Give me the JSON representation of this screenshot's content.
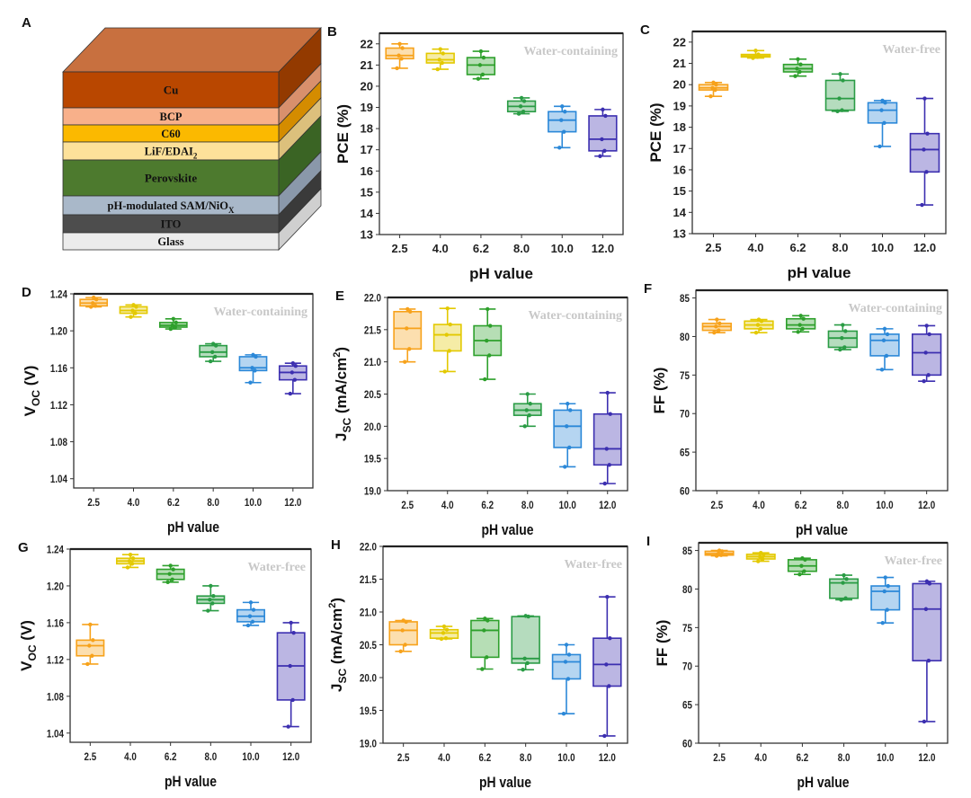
{
  "panel_a": {
    "label": "A",
    "layers": [
      {
        "text": "Cu",
        "sub": "",
        "color": "#b94700",
        "side": "#933a00"
      },
      {
        "text": "BCP",
        "sub": "",
        "color": "#f8b08a",
        "side": "#d8906c"
      },
      {
        "text": "C60",
        "sub": "",
        "color": "#fbb900",
        "side": "#d48c00"
      },
      {
        "text": "LiF/EDAI",
        "sub": "2",
        "color": "#fde19a",
        "side": "#dcc07c"
      },
      {
        "text": "Perovskite",
        "sub": "",
        "color": "#4d7a2e",
        "side": "#3a6424"
      },
      {
        "text": "pH-modulated SAM/NiO",
        "sub": "X",
        "color": "#a9b8c9",
        "side": "#8a98aa"
      },
      {
        "text": "ITO",
        "sub": "",
        "color": "#4d4d4d",
        "side": "#3a3a3a"
      },
      {
        "text": "Glass",
        "sub": "",
        "color": "#ececec",
        "side": "#cfcfcf"
      }
    ],
    "top_color": "#c8703f"
  },
  "box_colors": [
    "#f7a21b",
    "#e3c900",
    "#2ea02c",
    "#2a9c45",
    "#2b88d8",
    "#3c2fb0"
  ],
  "chart_data": [
    {
      "panel": "B",
      "type": "box",
      "condition": "Water-containing",
      "xlabel": "pH value",
      "ylabel": [
        {
          "t": "PCE (%)"
        }
      ],
      "ylim": [
        13,
        22.5
      ],
      "yticks": [
        13,
        14,
        15,
        16,
        17,
        18,
        19,
        20,
        21,
        22
      ],
      "ytick_decimals": 0,
      "categories": [
        "2.5",
        "4.0",
        "6.2",
        "8.0",
        "10.0",
        "12.0"
      ],
      "boxes": [
        [
          20.85,
          21.3,
          21.45,
          21.8,
          22.0
        ],
        [
          20.8,
          21.1,
          21.25,
          21.55,
          21.75
        ],
        [
          20.35,
          20.55,
          21.0,
          21.35,
          21.65
        ],
        [
          18.7,
          18.8,
          19.05,
          19.3,
          19.45
        ],
        [
          17.1,
          17.85,
          18.4,
          18.8,
          19.05
        ],
        [
          16.7,
          16.95,
          17.5,
          18.6,
          18.9
        ]
      ]
    },
    {
      "panel": "C",
      "type": "box",
      "condition": "Water-free",
      "xlabel": "pH value",
      "ylabel": [
        {
          "t": "PCE (%)"
        }
      ],
      "ylim": [
        13,
        22.5
      ],
      "yticks": [
        13,
        14,
        15,
        16,
        17,
        18,
        19,
        20,
        21,
        22
      ],
      "ytick_decimals": 0,
      "categories": [
        "2.5",
        "4.0",
        "6.2",
        "8.0",
        "10.0",
        "12.0"
      ],
      "boxes": [
        [
          19.45,
          19.75,
          19.85,
          20.0,
          20.1
        ],
        [
          21.25,
          21.3,
          21.35,
          21.42,
          21.6
        ],
        [
          20.4,
          20.6,
          20.75,
          20.95,
          21.2
        ],
        [
          18.75,
          18.8,
          19.35,
          20.2,
          20.5
        ],
        [
          17.1,
          18.2,
          18.8,
          19.15,
          19.25
        ],
        [
          14.35,
          15.9,
          16.95,
          17.7,
          19.35
        ]
      ]
    },
    {
      "panel": "D",
      "type": "box",
      "condition": "Water-containing",
      "xlabel": "pH value",
      "ylabel": [
        {
          "t": "V"
        },
        {
          "t": "OC",
          "sub": true
        },
        {
          "t": " (V)"
        }
      ],
      "ylim": [
        1.03,
        1.24
      ],
      "yticks": [
        1.04,
        1.08,
        1.12,
        1.16,
        1.2,
        1.24
      ],
      "ytick_decimals": 2,
      "categories": [
        "2.5",
        "4.0",
        "6.2",
        "8.0",
        "10.0",
        "12.0"
      ],
      "boxes": [
        [
          1.226,
          1.227,
          1.23,
          1.234,
          1.236
        ],
        [
          1.215,
          1.219,
          1.222,
          1.226,
          1.228
        ],
        [
          1.202,
          1.204,
          1.206,
          1.209,
          1.213
        ],
        [
          1.167,
          1.172,
          1.177,
          1.184,
          1.186
        ],
        [
          1.144,
          1.157,
          1.16,
          1.172,
          1.174
        ],
        [
          1.132,
          1.147,
          1.155,
          1.162,
          1.165
        ]
      ]
    },
    {
      "panel": "E",
      "type": "box",
      "condition": "Water-containing",
      "xlabel": "pH value",
      "ylabel": [
        {
          "t": "J"
        },
        {
          "t": "SC",
          "sub": true
        },
        {
          "t": " (mA/cm"
        },
        {
          "t": "2",
          "sup": true
        },
        {
          "t": ")"
        }
      ],
      "ylim": [
        19,
        22
      ],
      "yticks": [
        19.0,
        19.5,
        20.0,
        20.5,
        21.0,
        21.5,
        22.0
      ],
      "ytick_decimals": 1,
      "categories": [
        "2.5",
        "4.0",
        "6.2",
        "8.0",
        "10.0",
        "12.0"
      ],
      "boxes": [
        [
          21.0,
          21.2,
          21.52,
          21.78,
          21.82
        ],
        [
          20.85,
          21.17,
          21.42,
          21.58,
          21.83
        ],
        [
          20.73,
          21.1,
          21.33,
          21.56,
          21.82
        ],
        [
          20.0,
          20.17,
          20.25,
          20.35,
          20.5
        ],
        [
          19.37,
          19.67,
          20.0,
          20.25,
          20.35
        ],
        [
          19.11,
          19.4,
          19.65,
          20.19,
          20.52
        ]
      ]
    },
    {
      "panel": "F",
      "type": "box",
      "condition": "Water-containing",
      "xlabel": "pH value",
      "ylabel": [
        {
          "t": "FF (%)"
        }
      ],
      "ylim": [
        60,
        86
      ],
      "yticks": [
        60,
        65,
        70,
        75,
        80,
        85
      ],
      "ytick_decimals": 0,
      "categories": [
        "2.5",
        "4.0",
        "6.2",
        "8.0",
        "10.0",
        "12.0"
      ],
      "boxes": [
        [
          80.5,
          80.8,
          81.3,
          81.7,
          82.2
        ],
        [
          80.5,
          81.0,
          81.5,
          82.0,
          82.2
        ],
        [
          80.6,
          81.0,
          81.5,
          82.3,
          82.7
        ],
        [
          78.3,
          78.6,
          79.8,
          80.7,
          81.5
        ],
        [
          75.7,
          77.5,
          79.5,
          80.3,
          81.0
        ],
        [
          74.2,
          75.0,
          77.9,
          80.3,
          81.4
        ]
      ]
    },
    {
      "panel": "G",
      "type": "box",
      "condition": "Water-free",
      "xlabel": "pH value",
      "ylabel": [
        {
          "t": "V"
        },
        {
          "t": "OC",
          "sub": true
        },
        {
          "t": " (V)"
        }
      ],
      "ylim": [
        1.03,
        1.24
      ],
      "yticks": [
        1.04,
        1.08,
        1.12,
        1.16,
        1.2,
        1.24
      ],
      "ytick_decimals": 2,
      "categories": [
        "2.5",
        "4.0",
        "6.2",
        "8.0",
        "10.0",
        "12.0"
      ],
      "boxes": [
        [
          1.115,
          1.124,
          1.135,
          1.141,
          1.158
        ],
        [
          1.22,
          1.224,
          1.227,
          1.23,
          1.234
        ],
        [
          1.204,
          1.207,
          1.213,
          1.218,
          1.222
        ],
        [
          1.173,
          1.181,
          1.185,
          1.189,
          1.2
        ],
        [
          1.157,
          1.161,
          1.167,
          1.174,
          1.182
        ],
        [
          1.047,
          1.076,
          1.113,
          1.149,
          1.16
        ]
      ]
    },
    {
      "panel": "H",
      "type": "box",
      "condition": "Water-free",
      "xlabel": "pH value",
      "ylabel": [
        {
          "t": "J"
        },
        {
          "t": "SC",
          "sub": true
        },
        {
          "t": " (mA/cm"
        },
        {
          "t": "2",
          "sup": true
        },
        {
          "t": ")"
        }
      ],
      "ylim": [
        19,
        22
      ],
      "yticks": [
        19.0,
        19.5,
        20.0,
        20.5,
        21.0,
        21.5,
        22.0
      ],
      "ytick_decimals": 1,
      "categories": [
        "2.5",
        "4.0",
        "6.2",
        "8.0",
        "10.0",
        "12.0"
      ],
      "boxes": [
        [
          20.4,
          20.5,
          20.72,
          20.85,
          20.87
        ],
        [
          20.59,
          20.6,
          20.68,
          20.73,
          20.78
        ],
        [
          20.13,
          20.31,
          20.72,
          20.87,
          20.9
        ],
        [
          20.12,
          20.22,
          20.29,
          20.93,
          20.94
        ],
        [
          19.45,
          19.98,
          20.24,
          20.35,
          20.5
        ],
        [
          19.11,
          19.87,
          20.2,
          20.6,
          21.23
        ]
      ]
    },
    {
      "panel": "I",
      "type": "box",
      "condition": "Water-free",
      "xlabel": "pH value",
      "ylabel": [
        {
          "t": "FF (%)"
        }
      ],
      "ylim": [
        60,
        86
      ],
      "yticks": [
        60,
        65,
        70,
        75,
        80,
        85
      ],
      "ytick_decimals": 0,
      "categories": [
        "2.5",
        "4.0",
        "6.2",
        "8.0",
        "10.0",
        "12.0"
      ],
      "boxes": [
        [
          84.3,
          84.4,
          84.6,
          84.9,
          85.0
        ],
        [
          83.6,
          83.9,
          84.2,
          84.5,
          84.7
        ],
        [
          81.9,
          82.3,
          83.0,
          83.8,
          84.0
        ],
        [
          78.6,
          78.8,
          80.8,
          81.3,
          81.8
        ],
        [
          75.6,
          77.3,
          79.7,
          80.4,
          81.5
        ],
        [
          62.8,
          70.7,
          77.4,
          80.7,
          81.0
        ]
      ]
    }
  ]
}
